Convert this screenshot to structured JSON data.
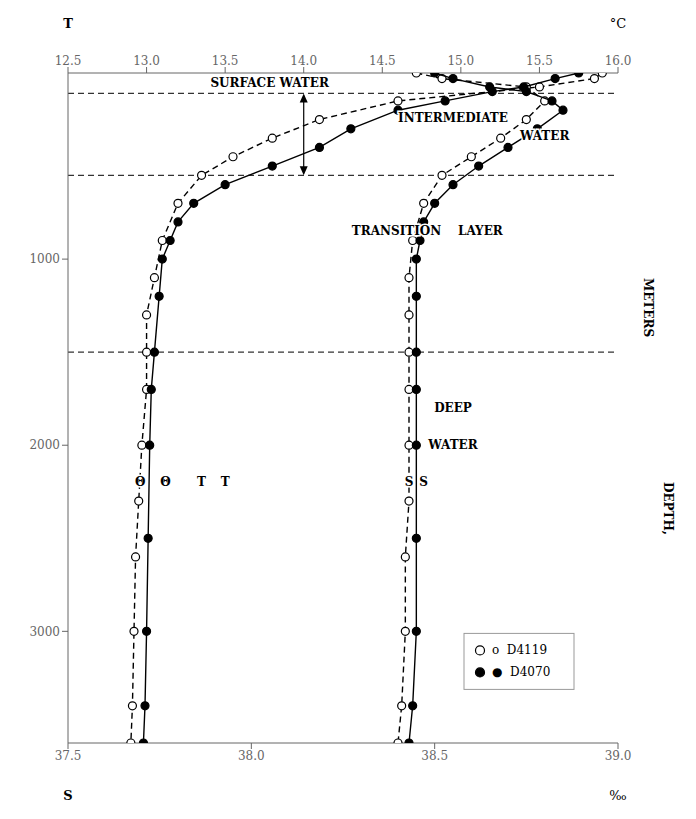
{
  "chart_data": {
    "type": "line",
    "xlabel": [
      "S",
      "‰"
    ],
    "x2label": [
      "T",
      "°C"
    ],
    "ylabel": [
      "METERS",
      "DEPTH,"
    ],
    "xlim": [
      37.5,
      39.0
    ],
    "xticks": [
      37.5,
      {
        "value": 38.0,
        "label": "38.0"
      },
      38.5,
      {
        "value": 39.0,
        "label": "39.0"
      }
    ],
    "x2lim": [
      12.5,
      16.0
    ],
    "x2ticks": [
      12.5,
      {
        "value": 13.0,
        "label": "13.0"
      },
      13.5,
      {
        "value": 14.0,
        "label": "14.0"
      },
      14.5,
      {
        "value": 15.0,
        "label": "15.0"
      },
      15.5,
      {
        "value": 16.0,
        "label": "16.0"
      }
    ],
    "ylim": [
      3600,
      0
    ],
    "yticks": [
      1000,
      2000,
      3000
    ],
    "grid": false,
    "legend": "lower right",
    "hlines": [
      110,
      550,
      1500
    ],
    "arrow": {
      "axis": "x2",
      "x": 14.0,
      "y": [
        110,
        550
      ]
    },
    "series": [
      {
        "name": "o  D4119",
        "axis": "x2",
        "marker": "circle_open",
        "line_style": "dashed",
        "color": "#000000",
        "y": [
          0,
          30,
          75,
          150,
          250,
          350,
          450,
          550,
          700,
          900,
          1100,
          1300,
          1500,
          1700,
          2000,
          2300,
          2600,
          3000,
          3400,
          3600
        ],
        "x": [
          15.9,
          15.85,
          15.5,
          14.6,
          14.1,
          13.8,
          13.55,
          13.35,
          13.2,
          13.1,
          13.05,
          13.0,
          13.0,
          13.0,
          12.97,
          12.95,
          12.93,
          12.92,
          12.91,
          12.9
        ]
      },
      {
        "name": "o  D4119",
        "marker": "circle_open",
        "line_style": "dashed",
        "color": "#000000",
        "y": [
          0,
          30,
          75,
          150,
          250,
          350,
          450,
          550,
          700,
          900,
          1100,
          1300,
          1500,
          1700,
          2000,
          2300,
          2600,
          3000,
          3400,
          3600
        ],
        "x": [
          38.45,
          38.52,
          38.75,
          38.8,
          38.75,
          38.68,
          38.6,
          38.52,
          38.47,
          38.44,
          38.43,
          38.43,
          38.43,
          38.43,
          38.43,
          38.43,
          38.42,
          38.42,
          38.41,
          38.4
        ]
      },
      {
        "name": "●  D4070",
        "axis": "x2",
        "marker": "circle",
        "line_style": "solid",
        "color": "#000000",
        "y": [
          0,
          30,
          75,
          100,
          150,
          200,
          300,
          400,
          500,
          600,
          700,
          800,
          900,
          1000,
          1200,
          1500,
          1700,
          2000,
          2500,
          3000,
          3400,
          3600
        ],
        "x": [
          15.75,
          15.6,
          15.4,
          15.2,
          14.9,
          14.6,
          14.3,
          14.1,
          13.8,
          13.5,
          13.3,
          13.2,
          13.15,
          13.1,
          13.08,
          13.05,
          13.03,
          13.02,
          13.01,
          13.0,
          12.99,
          12.98
        ]
      },
      {
        "name": "●  D4070",
        "marker": "circle",
        "line_style": "solid",
        "color": "#000000",
        "y": [
          0,
          30,
          75,
          100,
          150,
          200,
          300,
          400,
          500,
          600,
          700,
          800,
          900,
          1000,
          1200,
          1500,
          1700,
          2000,
          2500,
          3000,
          3400,
          3600
        ],
        "x": [
          38.5,
          38.55,
          38.65,
          38.75,
          38.82,
          38.85,
          38.78,
          38.7,
          38.62,
          38.55,
          38.5,
          38.47,
          38.46,
          38.45,
          38.45,
          38.45,
          38.45,
          38.45,
          38.45,
          38.45,
          38.44,
          38.43
        ]
      }
    ],
    "annotations": [
      {
        "text": "SURFACE WATER",
        "x": 38.05,
        "y": 55
      },
      {
        "text": "INTERMEDIATE",
        "x": 38.55,
        "y": 240
      },
      {
        "text": "WATER",
        "x": 38.8,
        "y": 340
      },
      {
        "text": "TRANSITION    LAYER",
        "x": 38.48,
        "y": 850
      },
      {
        "text": "DEEP",
        "x": 38.55,
        "y": 1800
      },
      {
        "text": "WATER",
        "x": 38.55,
        "y": 2000
      },
      {
        "text": "Θ",
        "x": 12.96,
        "y": 2200,
        "axis": "x2"
      },
      {
        "text": "T",
        "x": 13.35,
        "y": 2200,
        "axis": "x2"
      },
      {
        "text": "Θ",
        "x": 13.12,
        "y": 2200,
        "axis": "x2"
      },
      {
        "text": "T",
        "x": 13.5,
        "y": 2200,
        "axis": "x2"
      },
      {
        "text": "S",
        "x": 38.43,
        "y": 2200
      },
      {
        "text": "S",
        "x": 38.47,
        "y": 2200
      }
    ]
  }
}
